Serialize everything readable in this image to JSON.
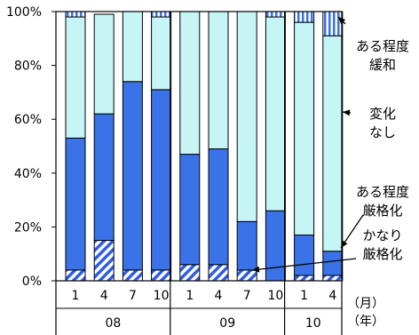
{
  "chart_data": {
    "type": "bar",
    "stacked": true,
    "normalized": true,
    "title": "",
    "xlabel": "",
    "ylabel": "",
    "ylim": [
      0,
      100
    ],
    "y_ticks": [
      "0%",
      "20%",
      "40%",
      "60%",
      "80%",
      "100%"
    ],
    "grid": false,
    "categories": [
      "1",
      "4",
      "7",
      "10",
      "1",
      "4",
      "7",
      "10",
      "1",
      "4"
    ],
    "year_groups": [
      {
        "label": "08",
        "count": 4
      },
      {
        "label": "09",
        "count": 4
      },
      {
        "label": "10",
        "count": 2
      }
    ],
    "axis_unit_labels": {
      "month": "（月）",
      "year": "（年）"
    },
    "series": [
      {
        "name": "かなり厳格化",
        "pattern": "diagonal-stripes",
        "color": "#2f5ce6",
        "values": [
          4,
          15,
          4,
          4,
          6,
          6,
          4,
          0,
          2,
          2
        ]
      },
      {
        "name": "ある程度厳格化",
        "color": "#3a72e8",
        "values": [
          49,
          47,
          70,
          67,
          41,
          43,
          18,
          26,
          15,
          9
        ]
      },
      {
        "name": "変化なし",
        "color": "#c6f5f5",
        "values": [
          45,
          37,
          26,
          27,
          53,
          51,
          78,
          72,
          79,
          80
        ]
      },
      {
        "name": "ある程度緩和",
        "pattern": "vertical-stripes",
        "color": "#3a72e8",
        "values": [
          2,
          0,
          0,
          2,
          0,
          0,
          0,
          2,
          4,
          9
        ]
      }
    ],
    "annotations": [
      {
        "lines": [
          "ある程度",
          "緩和"
        ],
        "series": "ある程度緩和"
      },
      {
        "lines": [
          "変化",
          "なし"
        ],
        "series": "変化なし"
      },
      {
        "lines": [
          "ある程度",
          "厳格化"
        ],
        "series": "ある程度厳格化"
      },
      {
        "lines": [
          "かなり",
          "厳格化"
        ],
        "series": "かなり厳格化"
      }
    ]
  }
}
